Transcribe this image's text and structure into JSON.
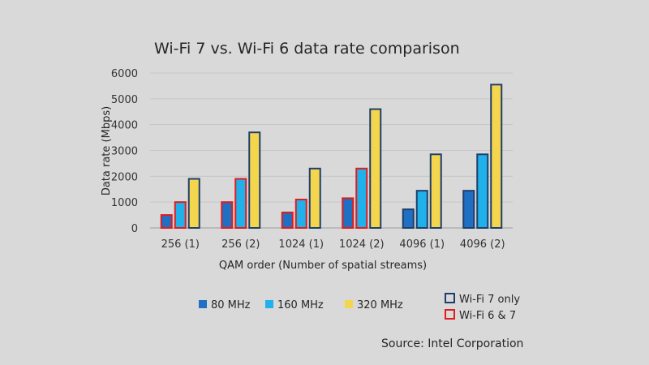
{
  "chart_data": {
    "type": "bar",
    "title": "Wi-Fi 7 vs. Wi-Fi 6 data rate comparison",
    "xlabel": "QAM order (Number of spatial streams)",
    "ylabel": "Data rate (Mbps)",
    "ylim": [
      0,
      6000
    ],
    "yticks": [
      0,
      1000,
      2000,
      3000,
      4000,
      5000,
      6000
    ],
    "grid": true,
    "categories": [
      "256 (1)",
      "256 (2)",
      "1024 (1)",
      "1024 (2)",
      "4096 (1)",
      "4096 (2)"
    ],
    "series": [
      {
        "name": "80 MHz",
        "color": "#1f6fc2",
        "values": [
          500,
          1000,
          600,
          1150,
          720,
          1440
        ]
      },
      {
        "name": "160 MHz",
        "color": "#20b0ea",
        "values": [
          1000,
          1900,
          1100,
          2300,
          1440,
          2850
        ]
      },
      {
        "name": "320 MHz",
        "color": "#f4d64e",
        "values": [
          1900,
          3700,
          2300,
          4600,
          2850,
          5550
        ]
      }
    ],
    "outline_legend": [
      {
        "name": "Wi-Fi 7 only",
        "color": "#1f3f6a"
      },
      {
        "name": "Wi-Fi 6 & 7",
        "color": "#e31b1b"
      }
    ],
    "outline_membership": [
      [
        "wifi6",
        "wifi6",
        "wifi7"
      ],
      [
        "wifi6",
        "wifi6",
        "wifi7"
      ],
      [
        "wifi6",
        "wifi6",
        "wifi7"
      ],
      [
        "wifi6",
        "wifi6",
        "wifi7"
      ],
      [
        "wifi7",
        "wifi7",
        "wifi7"
      ],
      [
        "wifi7",
        "wifi7",
        "wifi7"
      ]
    ],
    "source": "Source: Intel Corporation"
  }
}
